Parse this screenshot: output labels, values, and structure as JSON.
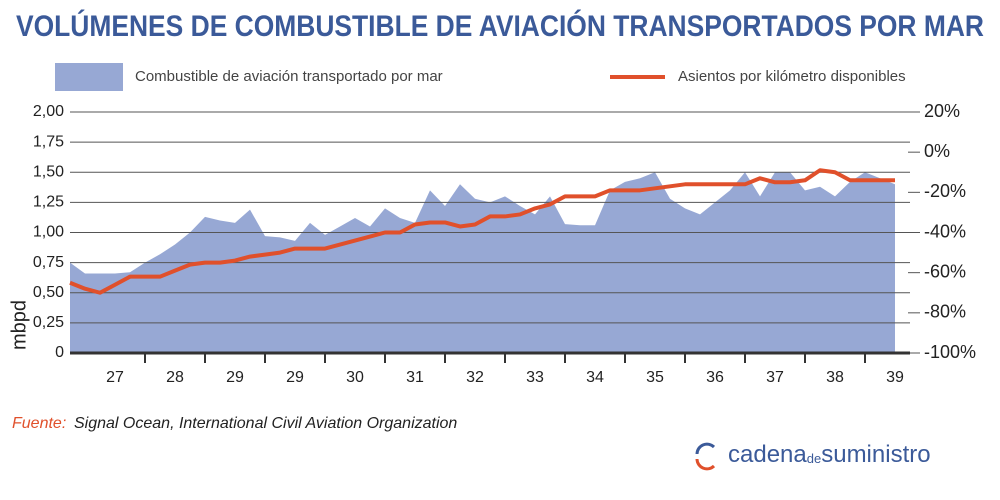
{
  "chart_data": {
    "type": "area_line",
    "title": "VOLÚMENES DE COMBUSTIBLE DE AVIACIÓN TRANSPORTADOS POR MAR",
    "y_label": "mbpd",
    "categories": [
      null,
      null,
      null,
      "27",
      null,
      null,
      null,
      "28",
      null,
      null,
      null,
      "29",
      null,
      null,
      null,
      "29",
      null,
      null,
      null,
      "30",
      null,
      null,
      null,
      "31",
      null,
      null,
      null,
      "32",
      null,
      null,
      null,
      "33",
      null,
      null,
      null,
      "34",
      null,
      null,
      null,
      "35",
      null,
      null,
      null,
      "36",
      null,
      null,
      null,
      "37",
      null,
      null,
      null,
      "38",
      null,
      null,
      null,
      "39"
    ],
    "series": [
      {
        "name": "Combustible de aviación transportado por mar",
        "color": "#97a8d4",
        "kind": "area",
        "values": [
          0.75,
          0.66,
          0.66,
          0.66,
          0.67,
          0.75,
          0.82,
          0.9,
          1.0,
          1.13,
          1.1,
          1.08,
          1.19,
          0.97,
          0.96,
          0.93,
          1.08,
          0.98,
          1.05,
          1.12,
          1.05,
          1.2,
          1.12,
          1.08,
          1.35,
          1.22,
          1.4,
          1.28,
          1.25,
          1.3,
          1.22,
          1.15,
          1.3,
          1.07,
          1.06,
          1.06,
          1.35,
          1.42,
          1.45,
          1.5,
          1.28,
          1.2,
          1.15,
          1.25,
          1.35,
          1.5,
          1.3,
          1.5,
          1.5,
          1.35,
          1.38,
          1.3,
          1.42,
          1.5,
          1.45,
          1.4
        ]
      },
      {
        "name": "Asientos por kilómetro disponibles",
        "color": "#e0502b",
        "kind": "line",
        "axis": "y2",
        "values": [
          -65,
          -68,
          -70,
          -66,
          -62,
          -62,
          -62,
          -59,
          -56,
          -55,
          -55,
          -54,
          -52,
          -51,
          -50,
          -48,
          -48,
          -48,
          -46,
          -44,
          -42,
          -40,
          -40,
          -36,
          -35,
          -35,
          -37,
          -36,
          -32,
          -32,
          -31,
          -28,
          -26,
          -22,
          -22,
          -22,
          -19,
          -19,
          -19,
          -18,
          -17,
          -16,
          -16,
          -16,
          -16,
          -16,
          -13,
          -15,
          -15,
          -14,
          -9,
          -10,
          -14,
          -14,
          -14,
          -14
        ]
      }
    ],
    "ylim": [
      0,
      2
    ],
    "yticks": [
      0,
      {
        "value": 0.25,
        "label": "0,25"
      },
      {
        "value": 0.5,
        "label": "0,50"
      },
      {
        "value": 0.75,
        "label": "0,75"
      },
      {
        "value": 1,
        "label": "1,00"
      },
      {
        "value": 1.25,
        "label": "1,25"
      },
      {
        "value": 1.5,
        "label": "1,50"
      },
      {
        "value": 1.75,
        "label": "1,75"
      },
      {
        "value": 2,
        "label": "2,00"
      }
    ],
    "y2lim": [
      -100,
      20
    ],
    "y2ticks": [
      {
        "value": -100,
        "label": "-100%"
      },
      {
        "value": -80,
        "label": "-80%"
      },
      {
        "value": -60,
        "label": "-60%"
      },
      {
        "value": -40,
        "label": "-40%"
      },
      {
        "value": -20,
        "label": "-20%"
      },
      {
        "value": 0,
        "label": "0%"
      },
      {
        "value": 20,
        "label": "20%"
      }
    ],
    "grid": true,
    "source_label": "Fuente:",
    "source": "Signal Ocean, International Civil Aviation Organization",
    "logo": {
      "main": "cadena",
      "small": "de",
      "end": "suministro"
    }
  }
}
